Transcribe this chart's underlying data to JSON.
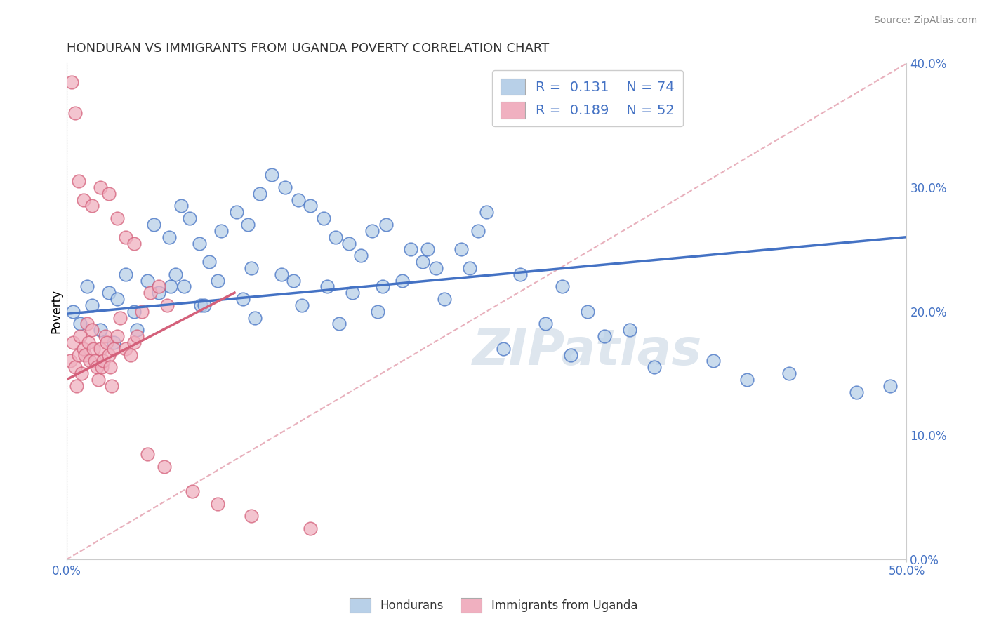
{
  "title": "HONDURAN VS IMMIGRANTS FROM UGANDA POVERTY CORRELATION CHART",
  "source": "Source: ZipAtlas.com",
  "ylabel": "Poverty",
  "x_min": 0.0,
  "x_max": 50.0,
  "y_min": 0.0,
  "y_max": 40.0,
  "y_ticks": [
    0.0,
    10.0,
    20.0,
    30.0,
    40.0
  ],
  "blue_color": "#b8d0e8",
  "pink_color": "#f0b0c0",
  "blue_line_color": "#4472c4",
  "pink_line_color": "#d4607a",
  "ref_line_color": "#e8b0bc",
  "legend_R_blue": "0.131",
  "legend_N_blue": "74",
  "legend_R_pink": "0.189",
  "legend_N_pink": "52",
  "blue_trend_x0": 0.0,
  "blue_trend_y0": 19.8,
  "blue_trend_x1": 50.0,
  "blue_trend_y1": 26.0,
  "pink_trend_x0": 0.0,
  "pink_trend_y0": 14.5,
  "pink_trend_x1": 10.0,
  "pink_trend_y1": 21.5,
  "blue_scatter_x": [
    0.4,
    1.2,
    2.5,
    3.5,
    4.8,
    5.2,
    6.1,
    6.8,
    7.3,
    7.9,
    8.5,
    9.2,
    10.1,
    10.8,
    11.5,
    12.2,
    13.0,
    13.8,
    14.5,
    15.3,
    16.0,
    16.8,
    17.5,
    18.2,
    19.0,
    20.5,
    21.2,
    22.0,
    23.5,
    25.0,
    0.8,
    1.5,
    2.0,
    3.0,
    4.0,
    5.5,
    6.5,
    7.0,
    8.0,
    9.0,
    10.5,
    11.2,
    12.8,
    14.0,
    15.5,
    17.0,
    18.5,
    20.0,
    22.5,
    24.0,
    26.0,
    28.5,
    30.0,
    32.0,
    35.0,
    38.5,
    40.5,
    43.0,
    47.0,
    49.0,
    2.8,
    4.2,
    6.2,
    8.2,
    11.0,
    13.5,
    16.2,
    18.8,
    21.5,
    24.5,
    27.0,
    29.5,
    31.0,
    33.5
  ],
  "blue_scatter_y": [
    20.0,
    22.0,
    21.5,
    23.0,
    22.5,
    27.0,
    26.0,
    28.5,
    27.5,
    25.5,
    24.0,
    26.5,
    28.0,
    27.0,
    29.5,
    31.0,
    30.0,
    29.0,
    28.5,
    27.5,
    26.0,
    25.5,
    24.5,
    26.5,
    27.0,
    25.0,
    24.0,
    23.5,
    25.0,
    28.0,
    19.0,
    20.5,
    18.5,
    21.0,
    20.0,
    21.5,
    23.0,
    22.0,
    20.5,
    22.5,
    21.0,
    19.5,
    23.0,
    20.5,
    22.0,
    21.5,
    20.0,
    22.5,
    21.0,
    23.5,
    17.0,
    19.0,
    16.5,
    18.0,
    15.5,
    16.0,
    14.5,
    15.0,
    13.5,
    14.0,
    17.5,
    18.5,
    22.0,
    20.5,
    23.5,
    22.5,
    19.0,
    22.0,
    25.0,
    26.5,
    23.0,
    22.0,
    20.0,
    18.5
  ],
  "pink_scatter_x": [
    0.2,
    0.4,
    0.5,
    0.6,
    0.7,
    0.8,
    0.9,
    1.0,
    1.1,
    1.2,
    1.3,
    1.4,
    1.5,
    1.6,
    1.7,
    1.8,
    1.9,
    2.0,
    2.1,
    2.2,
    2.3,
    2.4,
    2.5,
    2.6,
    2.7,
    2.8,
    3.0,
    3.2,
    3.5,
    3.8,
    4.0,
    4.2,
    4.5,
    5.0,
    5.5,
    6.0,
    0.3,
    0.5,
    0.7,
    1.0,
    1.5,
    2.0,
    2.5,
    3.0,
    3.5,
    4.0,
    4.8,
    5.8,
    7.5,
    9.0,
    11.0,
    14.5
  ],
  "pink_scatter_y": [
    16.0,
    17.5,
    15.5,
    14.0,
    16.5,
    18.0,
    15.0,
    17.0,
    16.5,
    19.0,
    17.5,
    16.0,
    18.5,
    17.0,
    16.0,
    15.5,
    14.5,
    17.0,
    15.5,
    16.0,
    18.0,
    17.5,
    16.5,
    15.5,
    14.0,
    17.0,
    18.0,
    19.5,
    17.0,
    16.5,
    17.5,
    18.0,
    20.0,
    21.5,
    22.0,
    20.5,
    38.5,
    36.0,
    30.5,
    29.0,
    28.5,
    30.0,
    29.5,
    27.5,
    26.0,
    25.5,
    8.5,
    7.5,
    5.5,
    4.5,
    3.5,
    2.5
  ],
  "watermark": "ZIPatlas",
  "background_color": "#ffffff",
  "plot_bg_color": "#ffffff",
  "grid_color": "#d8d8d8"
}
